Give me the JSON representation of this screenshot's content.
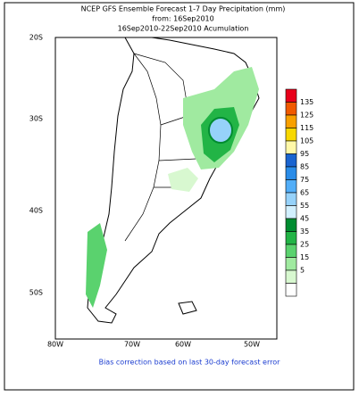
{
  "header": {
    "lines": [
      "NCEP GFS Ensemble Forecast 1-7 Day Precipitation (mm)",
      "from: 16Sep2010",
      "16Sep2010-22Sep2010 Acumulation"
    ]
  },
  "axes": {
    "lat_labels": [
      "20S",
      "30S",
      "40S",
      "50S"
    ],
    "lon_labels": [
      "80W",
      "70W",
      "60W",
      "50W"
    ]
  },
  "legend": {
    "labels": [
      "135",
      "125",
      "115",
      "105",
      "95",
      "85",
      "75",
      "65",
      "55",
      "45",
      "35",
      "25",
      "15",
      "5"
    ],
    "colors": [
      "#e8001a",
      "#f05a00",
      "#f8a000",
      "#f8d800",
      "#fff8a8",
      "#1a64d0",
      "#2a8ce8",
      "#52aef8",
      "#96d2fa",
      "#d2f0ff",
      "#008c30",
      "#22b446",
      "#5ad26e",
      "#a0eaa0",
      "#d8f8d0",
      "#ffffff"
    ]
  },
  "footer": {
    "text": "Bias correction based on last 30-day forecast error"
  }
}
